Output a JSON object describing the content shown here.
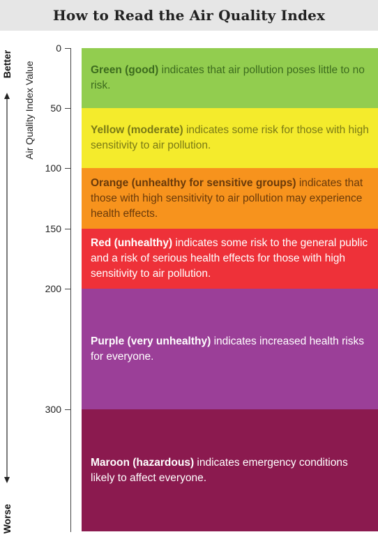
{
  "title": "How to Read the Air Quality Index",
  "axis": {
    "label": "Air Quality Index Value",
    "top_label": "Better",
    "bottom_label": "Worse",
    "ticks": [
      "0",
      "50",
      "100",
      "150",
      "200",
      "300"
    ]
  },
  "categories": [
    {
      "name": "Green (good)",
      "text": " indicates that air pollution poses little to no risk.",
      "from": 0,
      "to": 50,
      "color": "#92cd4f",
      "text_color": "#3c6b1e"
    },
    {
      "name": "Yellow (moderate)",
      "text": " indicates some risk for those with high sensitivity to air pollution.",
      "from": 50,
      "to": 100,
      "color": "#f4eb2c",
      "text_color": "#7a7a16"
    },
    {
      "name": "Orange (unhealthy for sensitive groups)",
      "text": " indicates that those with high sensitivity to air pollution may experience health effects.",
      "from": 100,
      "to": 150,
      "color": "#f7931d",
      "text_color": "#6a3a0a"
    },
    {
      "name": "Red (unhealthy)",
      "text": " indicates some risk to the general public and a risk of serious health effects for those with high sensitivity to air pollution.",
      "from": 150,
      "to": 200,
      "color": "#ee3139",
      "text_color": "#ffffff"
    },
    {
      "name": "Purple (very unhealthy)",
      "text": " indicates increased health risks for everyone.",
      "from": 200,
      "to": 300,
      "color": "#9b3f98",
      "text_color": "#ffffff"
    },
    {
      "name": "Maroon (hazardous)",
      "text": " indicates emergency conditions likely to affect everyone.",
      "from": 300,
      "to": 400,
      "color": "#8b1a4f",
      "text_color": "#ffffff"
    }
  ]
}
